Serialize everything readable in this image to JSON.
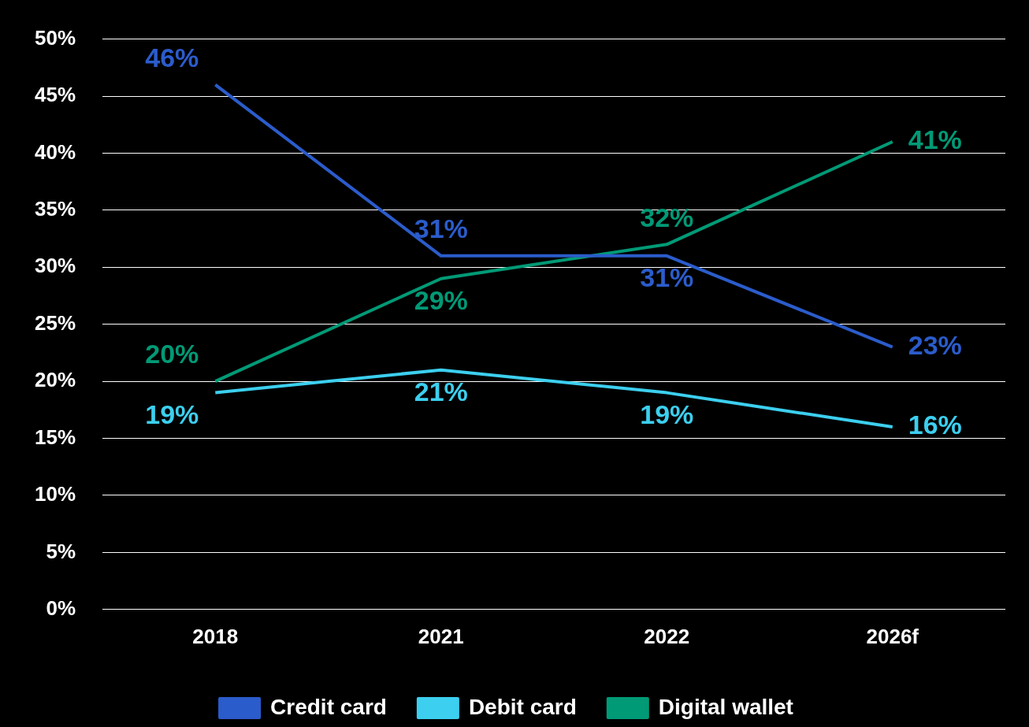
{
  "chart_data": {
    "type": "line",
    "categories": [
      "2018",
      "2021",
      "2022",
      "2026f"
    ],
    "series": [
      {
        "name": "Credit card",
        "color": "#2b5ccb",
        "values": [
          46,
          31,
          31,
          23
        ],
        "value_labels": [
          "46%",
          "31%",
          "31%",
          "23%"
        ]
      },
      {
        "name": "Debit card",
        "color": "#3ccfef",
        "values": [
          19,
          21,
          19,
          16
        ],
        "value_labels": [
          "19%",
          "21%",
          "19%",
          "16%"
        ]
      },
      {
        "name": "Digital wallet",
        "color": "#009a76",
        "values": [
          20,
          29,
          32,
          41
        ],
        "value_labels": [
          "20%",
          "29%",
          "32%",
          "41%"
        ]
      }
    ],
    "ylim": [
      0,
      50
    ],
    "yticks": [
      {
        "value": 0,
        "label": "0%"
      },
      {
        "value": 5,
        "label": "5%"
      },
      {
        "value": 10,
        "label": "10%"
      },
      {
        "value": 15,
        "label": "15%"
      },
      {
        "value": 20,
        "label": "20%"
      },
      {
        "value": 25,
        "label": "25%"
      },
      {
        "value": 30,
        "label": "30%"
      },
      {
        "value": 35,
        "label": "35%"
      },
      {
        "value": 40,
        "label": "40%"
      },
      {
        "value": 45,
        "label": "45%"
      },
      {
        "value": 50,
        "label": "50%"
      }
    ],
    "grid": "y",
    "legend": "bottom",
    "marker": "none",
    "line_style": "solid"
  }
}
